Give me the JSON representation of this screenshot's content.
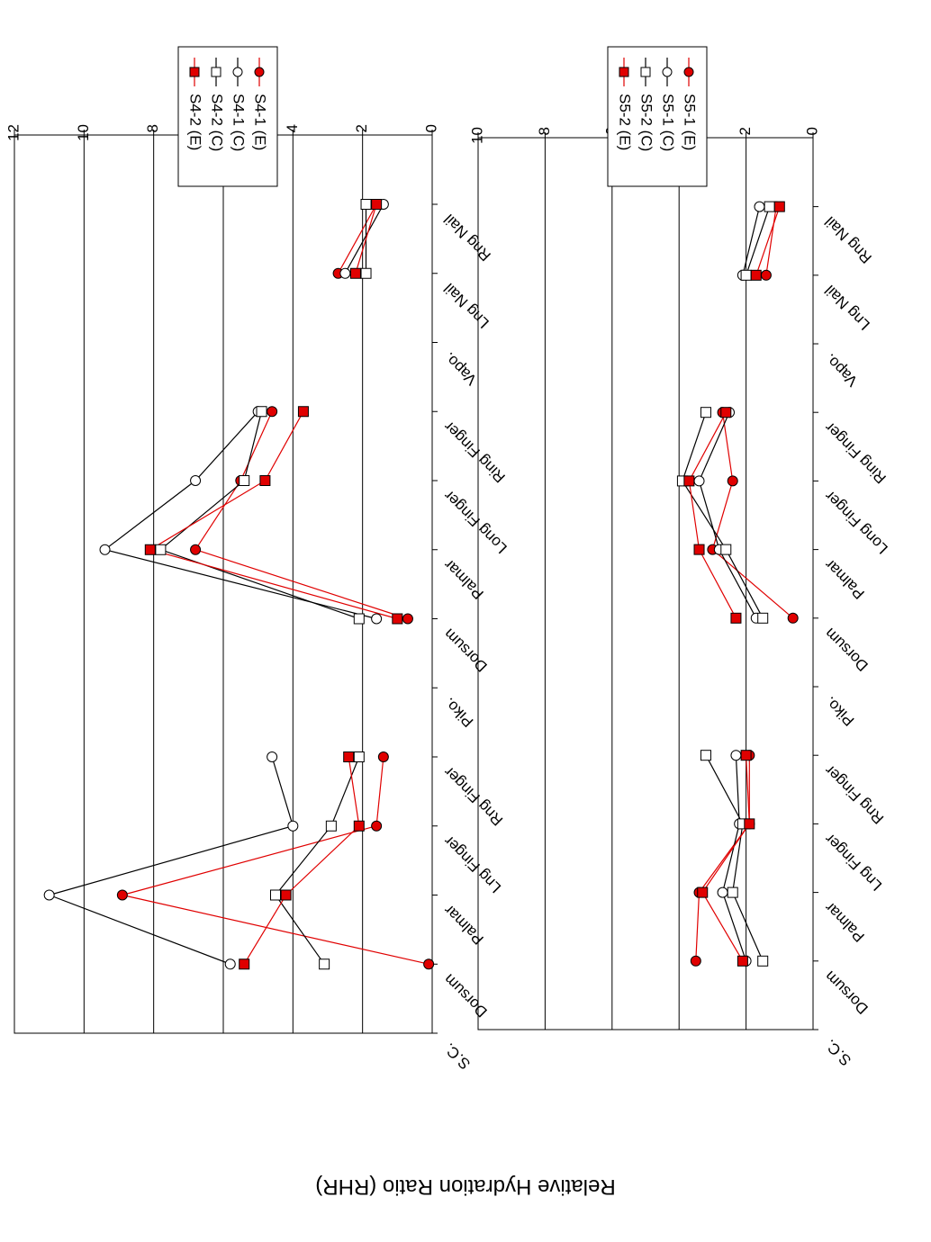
{
  "figure": {
    "ylabel": "Relative Hydration Ratio (RHR)",
    "orientation": "rotated-180"
  },
  "colors": {
    "red": "#e00000",
    "black": "#000000",
    "grid": "#000000"
  },
  "chart_data": [
    {
      "id": "top",
      "type": "line",
      "categories": [
        "S.C.",
        "Dorsum",
        "Palmar",
        "Lng Finger",
        "Rng Finger",
        "Piko.",
        "Dorsum",
        "Palmar",
        "Long Finger",
        "Ring Finger",
        "Vapo.",
        "Lng Nail",
        "Rng Nail"
      ],
      "ylim": [
        0,
        12
      ],
      "yticks": [
        "0",
        "2",
        "4",
        "6",
        "8",
        "10",
        "12"
      ],
      "grid": true,
      "legend_position": "top-left",
      "series": [
        {
          "name": "S4-1 (E)",
          "marker": "circle",
          "filled": true,
          "color": "#e00000",
          "segments": [
            [
              [
                1,
                0.1
              ],
              [
                2,
                8.9
              ],
              [
                3,
                1.6
              ],
              [
                4,
                1.4
              ]
            ],
            [
              [
                6,
                0.7
              ],
              [
                7,
                6.8
              ],
              [
                8,
                5.5
              ],
              [
                9,
                4.6
              ]
            ],
            [
              [
                11,
                2.7
              ],
              [
                12,
                1.6
              ]
            ]
          ]
        },
        {
          "name": "S4-1 (C)",
          "marker": "circle",
          "filled": false,
          "color": "#000000",
          "segments": [
            [
              [
                1,
                5.8
              ],
              [
                2,
                11.0
              ],
              [
                3,
                4.0
              ],
              [
                4,
                4.6
              ]
            ],
            [
              [
                6,
                1.6
              ],
              [
                7,
                9.4
              ],
              [
                8,
                6.8
              ],
              [
                9,
                5.0
              ]
            ],
            [
              [
                11,
                2.5
              ],
              [
                12,
                1.4
              ]
            ]
          ]
        },
        {
          "name": "S4-2 (C)",
          "marker": "square",
          "filled": false,
          "color": "#000000",
          "segments": [
            [
              [
                1,
                3.1
              ],
              [
                2,
                4.5
              ],
              [
                3,
                2.9
              ],
              [
                4,
                2.1
              ]
            ],
            [
              [
                6,
                2.1
              ],
              [
                7,
                7.8
              ],
              [
                8,
                5.4
              ],
              [
                9,
                4.9
              ]
            ],
            [
              [
                11,
                1.9
              ],
              [
                12,
                1.9
              ]
            ]
          ]
        },
        {
          "name": "S4-2 (E)",
          "marker": "square",
          "filled": true,
          "color": "#e00000",
          "segments": [
            [
              [
                1,
                5.4
              ],
              [
                2,
                4.2
              ],
              [
                3,
                2.1
              ],
              [
                4,
                2.4
              ]
            ],
            [
              [
                6,
                1.0
              ],
              [
                7,
                8.1
              ],
              [
                8,
                4.8
              ],
              [
                9,
                3.7
              ]
            ],
            [
              [
                11,
                2.2
              ],
              [
                12,
                1.6
              ]
            ]
          ]
        }
      ]
    },
    {
      "id": "bottom",
      "type": "line",
      "categories": [
        "S.C.",
        "Dorsum",
        "Palmar",
        "Lng Finger",
        "Rng Finger",
        "Piko.",
        "Dorsum",
        "Palmar",
        "Long Finger",
        "Ring Finger",
        "Vapo.",
        "Lng Nail",
        "Rng Nail"
      ],
      "ylim": [
        0,
        10
      ],
      "yticks": [
        "0",
        "2",
        "4",
        "6",
        "8",
        "10"
      ],
      "grid": true,
      "legend_position": "top-left",
      "series": [
        {
          "name": "S5-1 (E)",
          "marker": "circle",
          "filled": true,
          "color": "#e00000",
          "segments": [
            [
              [
                1,
                3.5
              ],
              [
                2,
                3.4
              ],
              [
                3,
                1.9
              ],
              [
                4,
                1.9
              ]
            ],
            [
              [
                6,
                0.6
              ],
              [
                7,
                3.0
              ],
              [
                8,
                2.4
              ],
              [
                9,
                2.7
              ]
            ],
            [
              [
                11,
                1.4
              ],
              [
                12,
                1.1
              ]
            ]
          ]
        },
        {
          "name": "S5-1 (C)",
          "marker": "circle",
          "filled": false,
          "color": "#000000",
          "segments": [
            [
              [
                1,
                2.0
              ],
              [
                2,
                2.7
              ],
              [
                3,
                2.2
              ],
              [
                4,
                2.3
              ]
            ],
            [
              [
                6,
                1.7
              ],
              [
                7,
                2.8
              ],
              [
                8,
                3.4
              ],
              [
                9,
                2.5
              ]
            ],
            [
              [
                11,
                2.1
              ],
              [
                12,
                1.6
              ]
            ]
          ]
        },
        {
          "name": "S5-2 (C)",
          "marker": "square",
          "filled": false,
          "color": "#000000",
          "segments": [
            [
              [
                1,
                1.5
              ],
              [
                2,
                2.4
              ],
              [
                3,
                2.1
              ],
              [
                4,
                3.2
              ]
            ],
            [
              [
                6,
                1.5
              ],
              [
                7,
                2.6
              ],
              [
                8,
                3.9
              ],
              [
                9,
                3.2
              ]
            ],
            [
              [
                11,
                2.0
              ],
              [
                12,
                1.3
              ]
            ]
          ]
        },
        {
          "name": "S5-2 (E)",
          "marker": "square",
          "filled": true,
          "color": "#e00000",
          "segments": [
            [
              [
                1,
                2.1
              ],
              [
                2,
                3.3
              ],
              [
                3,
                1.9
              ],
              [
                4,
                2.0
              ]
            ],
            [
              [
                6,
                2.3
              ],
              [
                7,
                3.4
              ],
              [
                8,
                3.7
              ],
              [
                9,
                2.6
              ]
            ],
            [
              [
                11,
                1.7
              ],
              [
                12,
                1.0
              ]
            ]
          ]
        }
      ]
    }
  ]
}
